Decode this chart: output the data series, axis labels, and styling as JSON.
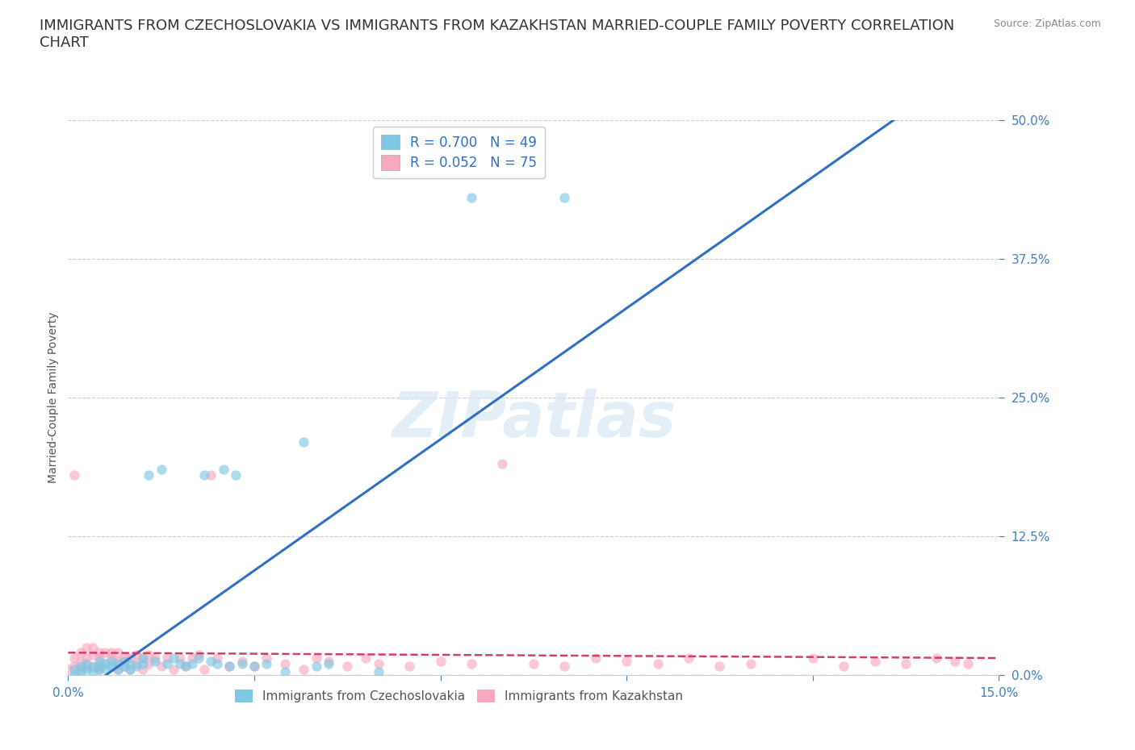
{
  "title": "IMMIGRANTS FROM CZECHOSLOVAKIA VS IMMIGRANTS FROM KAZAKHSTAN MARRIED-COUPLE FAMILY POVERTY CORRELATION\nCHART",
  "source": "Source: ZipAtlas.com",
  "ylabel": "Married-Couple Family Poverty",
  "xlim": [
    0.0,
    0.15
  ],
  "ylim": [
    0.0,
    0.5
  ],
  "xticks": [
    0.0,
    0.03,
    0.06,
    0.09,
    0.12,
    0.15
  ],
  "xtick_labels": [
    "0.0%",
    "",
    "",
    "",
    "",
    "15.0%"
  ],
  "ytick_labels": [
    "0.0%",
    "12.5%",
    "25.0%",
    "37.5%",
    "50.0%"
  ],
  "yticks": [
    0.0,
    0.125,
    0.25,
    0.375,
    0.5
  ],
  "legend_r1": "R = 0.700",
  "legend_n1": "N = 49",
  "legend_r2": "R = 0.052",
  "legend_n2": "N = 75",
  "color_czech": "#7ec8e3",
  "color_kazakh": "#f9a8c0",
  "line_color_czech": "#3070c0",
  "line_color_kazakh": "#d04060",
  "background_color": "#ffffff",
  "watermark": "ZIPatlas",
  "title_fontsize": 13,
  "czech_x": [
    0.001,
    0.001,
    0.002,
    0.002,
    0.003,
    0.003,
    0.004,
    0.004,
    0.005,
    0.005,
    0.005,
    0.006,
    0.006,
    0.007,
    0.007,
    0.008,
    0.008,
    0.009,
    0.009,
    0.01,
    0.01,
    0.011,
    0.012,
    0.012,
    0.013,
    0.014,
    0.015,
    0.016,
    0.017,
    0.018,
    0.019,
    0.02,
    0.021,
    0.022,
    0.023,
    0.024,
    0.025,
    0.026,
    0.027,
    0.028,
    0.03,
    0.032,
    0.035,
    0.038,
    0.04,
    0.042,
    0.05,
    0.065,
    0.08
  ],
  "czech_y": [
    0.0,
    0.005,
    0.003,
    0.008,
    0.005,
    0.01,
    0.003,
    0.007,
    0.005,
    0.008,
    0.012,
    0.006,
    0.01,
    0.008,
    0.012,
    0.005,
    0.01,
    0.008,
    0.012,
    0.005,
    0.01,
    0.008,
    0.01,
    0.015,
    0.18,
    0.012,
    0.185,
    0.01,
    0.015,
    0.01,
    0.008,
    0.01,
    0.015,
    0.18,
    0.012,
    0.01,
    0.185,
    0.008,
    0.18,
    0.01,
    0.008,
    0.01,
    0.003,
    0.21,
    0.008,
    0.01,
    0.003,
    0.43,
    0.43
  ],
  "kazakh_x": [
    0.0,
    0.001,
    0.001,
    0.001,
    0.002,
    0.002,
    0.002,
    0.003,
    0.003,
    0.003,
    0.004,
    0.004,
    0.004,
    0.005,
    0.005,
    0.005,
    0.006,
    0.006,
    0.007,
    0.007,
    0.007,
    0.008,
    0.008,
    0.008,
    0.009,
    0.009,
    0.01,
    0.01,
    0.011,
    0.011,
    0.012,
    0.012,
    0.013,
    0.013,
    0.014,
    0.015,
    0.016,
    0.017,
    0.018,
    0.019,
    0.02,
    0.021,
    0.022,
    0.023,
    0.024,
    0.026,
    0.028,
    0.03,
    0.032,
    0.035,
    0.038,
    0.04,
    0.042,
    0.045,
    0.048,
    0.05,
    0.055,
    0.06,
    0.065,
    0.07,
    0.075,
    0.08,
    0.085,
    0.09,
    0.095,
    0.1,
    0.105,
    0.11,
    0.12,
    0.125,
    0.13,
    0.135,
    0.14,
    0.143,
    0.145
  ],
  "kazakh_y": [
    0.005,
    0.015,
    0.008,
    0.18,
    0.005,
    0.012,
    0.02,
    0.008,
    0.015,
    0.025,
    0.008,
    0.018,
    0.025,
    0.005,
    0.015,
    0.02,
    0.01,
    0.02,
    0.008,
    0.015,
    0.02,
    0.005,
    0.012,
    0.02,
    0.008,
    0.015,
    0.005,
    0.015,
    0.01,
    0.018,
    0.005,
    0.015,
    0.01,
    0.018,
    0.015,
    0.008,
    0.015,
    0.005,
    0.015,
    0.008,
    0.015,
    0.018,
    0.005,
    0.18,
    0.015,
    0.008,
    0.012,
    0.008,
    0.015,
    0.01,
    0.005,
    0.015,
    0.012,
    0.008,
    0.015,
    0.01,
    0.008,
    0.012,
    0.01,
    0.19,
    0.01,
    0.008,
    0.015,
    0.012,
    0.01,
    0.015,
    0.008,
    0.01,
    0.015,
    0.008,
    0.012,
    0.01,
    0.015,
    0.012,
    0.01
  ]
}
